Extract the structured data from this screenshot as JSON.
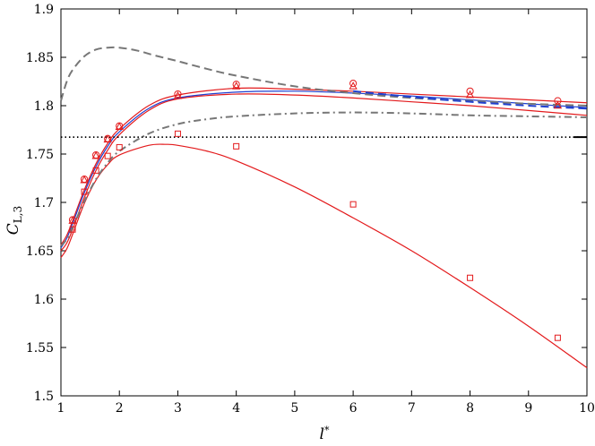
{
  "chart_data": {
    "type": "line",
    "title": "",
    "xlabel": "l*",
    "ylabel": "C_L,3",
    "xlim": [
      1,
      10
    ],
    "ylim": [
      1.5,
      1.9
    ],
    "grid": false,
    "x_ticks": [
      1,
      2,
      3,
      4,
      5,
      6,
      7,
      8,
      9,
      10
    ],
    "y_ticks": [
      1.5,
      1.55,
      1.6,
      1.65,
      1.7,
      1.75,
      1.8,
      1.85,
      1.9
    ],
    "x_tick_labels": [
      "1",
      "2",
      "3",
      "4",
      "5",
      "6",
      "7",
      "8",
      "9",
      "10"
    ],
    "y_tick_labels": [
      "1.5",
      "1.55",
      "1.6",
      "1.65",
      "1.7",
      "1.75",
      "1.8",
      "1.85",
      "1.9"
    ],
    "series": [
      {
        "style": "solid",
        "color": "#e31a1c",
        "x": [
          1.0,
          1.1,
          1.2,
          1.4,
          1.6,
          1.8,
          2.0,
          2.5,
          3.0,
          4.0,
          5.0,
          6.0,
          7.0,
          8.0,
          9.0,
          10.0
        ],
        "y": [
          1.656,
          1.666,
          1.681,
          1.713,
          1.74,
          1.761,
          1.776,
          1.8,
          1.811,
          1.818,
          1.817,
          1.815,
          1.812,
          1.809,
          1.806,
          1.803
        ]
      },
      {
        "style": "solid",
        "color": "#1f3fd0",
        "x": [
          1.0,
          1.1,
          1.2,
          1.4,
          1.6,
          1.8,
          2.0,
          2.5,
          3.0,
          4.0,
          5.0,
          6.0,
          7.0,
          8.0,
          9.0,
          10.0
        ],
        "y": [
          1.653,
          1.663,
          1.678,
          1.71,
          1.737,
          1.758,
          1.773,
          1.797,
          1.808,
          1.814,
          1.815,
          1.813,
          1.81,
          1.806,
          1.802,
          1.798
        ]
      },
      {
        "style": "solid",
        "color": "#e31a1c",
        "x": [
          1.0,
          1.1,
          1.2,
          1.4,
          1.6,
          1.8,
          2.0,
          2.5,
          3.0,
          4.0,
          5.0,
          6.0,
          7.0,
          8.0,
          9.0,
          10.0
        ],
        "y": [
          1.65,
          1.658,
          1.672,
          1.705,
          1.733,
          1.754,
          1.77,
          1.795,
          1.807,
          1.812,
          1.811,
          1.808,
          1.804,
          1.8,
          1.795,
          1.79
        ]
      },
      {
        "style": "solid",
        "color": "#e31a1c",
        "x": [
          1.0,
          1.1,
          1.2,
          1.4,
          1.6,
          1.8,
          2.0,
          2.5,
          2.8,
          3.0,
          3.5,
          4.0,
          5.0,
          6.0,
          7.0,
          8.0,
          9.0,
          10.0
        ],
        "y": [
          1.643,
          1.652,
          1.667,
          1.699,
          1.723,
          1.739,
          1.749,
          1.759,
          1.76,
          1.759,
          1.753,
          1.743,
          1.716,
          1.684,
          1.65,
          1.612,
          1.572,
          1.529
        ]
      },
      {
        "style": "dashed",
        "color": "#777777",
        "x": [
          1.0,
          1.1,
          1.2,
          1.4,
          1.6,
          1.8,
          2.0,
          2.3,
          2.6,
          3.0,
          3.5,
          4.0,
          5.0,
          6.0,
          7.0,
          8.0,
          9.0,
          10.0
        ],
        "y": [
          1.805,
          1.825,
          1.837,
          1.851,
          1.858,
          1.86,
          1.86,
          1.857,
          1.852,
          1.846,
          1.838,
          1.831,
          1.82,
          1.813,
          1.808,
          1.805,
          1.802,
          1.8
        ]
      },
      {
        "style": "dashdot",
        "color": "#777777",
        "x": [
          1.0,
          1.1,
          1.2,
          1.4,
          1.6,
          1.8,
          2.0,
          2.5,
          3.0,
          3.5,
          4.0,
          5.0,
          6.0,
          7.0,
          8.0,
          9.0,
          10.0
        ],
        "y": [
          1.655,
          1.662,
          1.674,
          1.701,
          1.724,
          1.741,
          1.753,
          1.771,
          1.781,
          1.786,
          1.789,
          1.792,
          1.793,
          1.792,
          1.79,
          1.789,
          1.788
        ]
      },
      {
        "style": "dashed",
        "color": "#1f3fd0",
        "x": [
          6.0,
          7.0,
          8.0,
          9.0,
          10.0
        ],
        "y": [
          1.815,
          1.809,
          1.804,
          1.8,
          1.797
        ]
      },
      {
        "style": "dotted",
        "color": "#000000",
        "x": [
          1.0,
          10.0
        ],
        "y": [
          1.7675,
          1.7675
        ]
      }
    ],
    "markers": [
      {
        "shape": "circle",
        "color": "#e31a1c",
        "x": [
          1.2,
          1.4,
          1.6,
          1.8,
          2.0,
          3.0,
          4.0,
          6.0,
          8.0,
          9.5
        ],
        "y": [
          1.682,
          1.724,
          1.749,
          1.766,
          1.779,
          1.812,
          1.822,
          1.823,
          1.815,
          1.805
        ]
      },
      {
        "shape": "triangle",
        "color": "#e31a1c",
        "x": [
          1.2,
          1.4,
          1.6,
          1.8,
          2.0,
          3.0,
          4.0,
          6.0,
          8.0,
          9.5
        ],
        "y": [
          1.681,
          1.723,
          1.748,
          1.765,
          1.778,
          1.81,
          1.82,
          1.82,
          1.811,
          1.8
        ]
      },
      {
        "shape": "square",
        "color": "#e31a1c",
        "x": [
          1.2,
          1.4,
          1.6,
          1.8,
          2.0,
          3.0,
          4.0,
          6.0,
          8.0,
          9.5
        ],
        "y": [
          1.672,
          1.711,
          1.733,
          1.748,
          1.757,
          1.771,
          1.758,
          1.698,
          1.622,
          1.56
        ]
      }
    ],
    "reference_segment": {
      "color": "#000000",
      "x": [
        9.78,
        10.0
      ],
      "y": [
        1.7675,
        1.7675
      ]
    }
  }
}
